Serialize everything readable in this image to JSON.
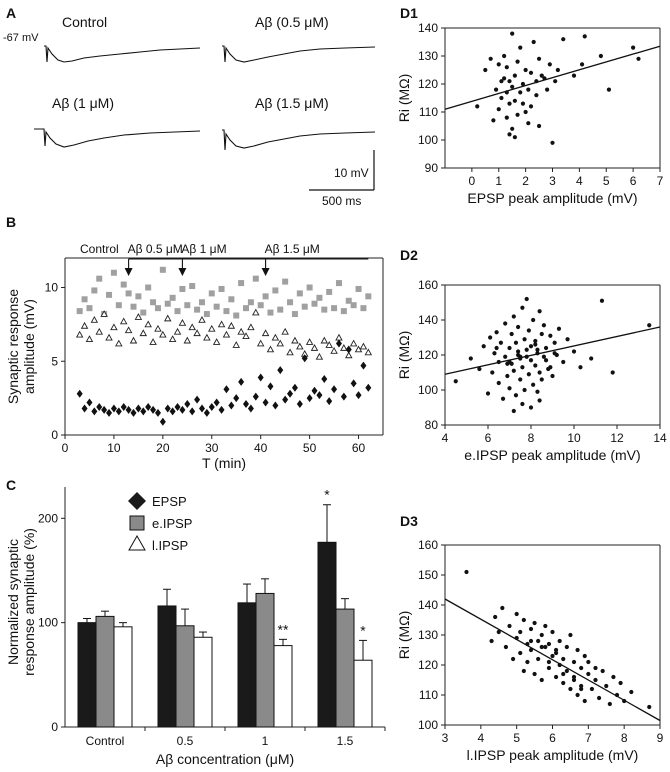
{
  "colors": {
    "axis": "#222222",
    "epsp": "#1a1a1a",
    "eipsp": "#8a8a8a",
    "lipsp": "#ffffff",
    "scatter_b_gray": "#a0a0a0",
    "scatter_b_black": "#111111"
  },
  "panel_a": {
    "label": "A",
    "resting_potential": "-67 mV",
    "traces": [
      {
        "title": "Control",
        "title_html": "Control"
      },
      {
        "title": "Aβ (0.5 μM)"
      },
      {
        "title": "Aβ (1 μM)"
      },
      {
        "title": "Aβ (1.5 μM)"
      }
    ],
    "scale_v": "10 mV",
    "scale_t": "500 ms"
  },
  "panel_b": {
    "label": "B",
    "markers": [
      {
        "label": "Control",
        "time": 0
      },
      {
        "label": "Aβ 0.5 μM",
        "time": 13
      },
      {
        "label": "Aβ 1 μM",
        "time": 24
      },
      {
        "label": "Aβ 1.5 μM",
        "time": 41
      }
    ]
  },
  "panel_c": {
    "label": "C",
    "legend": [
      "EPSP",
      "e.IPSP",
      "l.IPSP"
    ],
    "significance": {
      "epsp_1_5": "*",
      "lipsp_1": "**",
      "lipsp_1_5": "*"
    }
  },
  "panel_d": {
    "labels": [
      "D1",
      "D2",
      "D3"
    ]
  },
  "chart_data": [
    {
      "id": "B",
      "type": "scatter",
      "title": "",
      "xlabel": "T (min)",
      "ylabel_lines": [
        "Synaptic response",
        "amplitude (mV)"
      ],
      "xlim": [
        0,
        65
      ],
      "ylim": [
        0,
        12
      ],
      "xticks": [
        0,
        10,
        20,
        30,
        40,
        50,
        60
      ],
      "yticks": [
        0,
        5,
        10
      ],
      "series": [
        {
          "name": "e.IPSP",
          "marker": "square",
          "x": [
            3,
            4,
            5,
            6,
            7,
            8,
            9,
            10,
            11,
            12,
            13,
            14,
            15,
            16,
            17,
            18,
            19,
            20,
            21,
            22,
            23,
            24,
            25,
            26,
            27,
            28,
            29,
            30,
            31,
            32,
            33,
            34,
            35,
            36,
            37,
            38,
            39,
            40,
            41,
            42,
            43,
            44,
            45,
            46,
            47,
            48,
            49,
            50,
            51,
            52,
            53,
            54,
            55,
            56,
            57,
            58,
            59,
            60,
            61,
            62
          ],
          "y": [
            8.4,
            9.2,
            8.6,
            9.8,
            10.6,
            8.2,
            9.5,
            11.0,
            8.8,
            10.2,
            9.6,
            8.7,
            9.4,
            8.3,
            10.0,
            9.0,
            8.6,
            11.2,
            8.9,
            9.3,
            8.4,
            9.9,
            8.8,
            10.1,
            8.5,
            9.0,
            8.2,
            9.6,
            8.7,
            9.9,
            8.4,
            9.2,
            8.1,
            10.3,
            8.6,
            9.0,
            10.6,
            8.8,
            9.4,
            8.3,
            9.8,
            8.5,
            10.4,
            9.0,
            8.2,
            9.6,
            8.7,
            10.0,
            8.9,
            9.3,
            8.5,
            9.7,
            8.6,
            10.3,
            8.4,
            9.1,
            8.8,
            9.9,
            8.6,
            9.4
          ]
        },
        {
          "name": "l.IPSP",
          "marker": "triangle",
          "x": [
            3,
            4,
            5,
            6,
            7,
            8,
            9,
            10,
            11,
            12,
            13,
            14,
            15,
            16,
            17,
            18,
            19,
            20,
            21,
            22,
            23,
            24,
            25,
            26,
            27,
            28,
            29,
            30,
            31,
            32,
            33,
            34,
            35,
            36,
            37,
            38,
            39,
            40,
            41,
            42,
            43,
            44,
            45,
            46,
            47,
            48,
            49,
            50,
            51,
            52,
            53,
            54,
            55,
            56,
            57,
            58,
            59,
            60,
            61,
            62
          ],
          "y": [
            6.8,
            7.4,
            6.5,
            7.8,
            7.0,
            8.2,
            6.6,
            7.3,
            6.2,
            7.7,
            7.1,
            6.4,
            8.0,
            6.9,
            7.5,
            6.3,
            7.2,
            6.8,
            7.9,
            6.5,
            7.0,
            7.6,
            6.4,
            7.3,
            6.9,
            7.8,
            6.6,
            7.2,
            6.3,
            7.5,
            6.8,
            7.4,
            6.1,
            7.0,
            6.7,
            7.3,
            8.3,
            6.2,
            6.9,
            5.8,
            6.6,
            6.2,
            7.0,
            5.6,
            6.4,
            6.0,
            5.5,
            6.3,
            5.9,
            5.3,
            6.4,
            6.1,
            5.7,
            6.6,
            5.9,
            5.4,
            6.2,
            5.8,
            6.0,
            5.6
          ]
        },
        {
          "name": "EPSP",
          "marker": "diamond",
          "x": [
            3,
            4,
            5,
            6,
            7,
            8,
            9,
            10,
            11,
            12,
            13,
            14,
            15,
            16,
            17,
            18,
            19,
            20,
            21,
            22,
            23,
            24,
            25,
            26,
            27,
            28,
            29,
            30,
            31,
            32,
            33,
            34,
            35,
            36,
            37,
            38,
            39,
            40,
            41,
            42,
            43,
            44,
            45,
            46,
            47,
            48,
            49,
            50,
            51,
            52,
            53,
            54,
            55,
            56,
            57,
            58,
            59,
            60,
            61,
            62
          ],
          "y": [
            2.8,
            1.8,
            2.2,
            1.6,
            1.9,
            1.7,
            1.5,
            1.8,
            1.6,
            1.9,
            1.7,
            1.5,
            1.8,
            1.6,
            1.9,
            1.7,
            1.5,
            0.9,
            1.8,
            1.6,
            1.9,
            1.7,
            2.1,
            1.6,
            2.4,
            1.8,
            1.5,
            1.9,
            2.2,
            1.7,
            3.1,
            2.0,
            2.5,
            3.6,
            2.1,
            1.8,
            2.6,
            3.9,
            2.2,
            3.3,
            2.0,
            4.4,
            2.4,
            2.8,
            3.2,
            2.1,
            5.2,
            2.5,
            3.0,
            2.7,
            3.8,
            2.3,
            3.1,
            6.2,
            2.6,
            5.8,
            3.5,
            2.7,
            4.7,
            3.2
          ]
        }
      ]
    },
    {
      "id": "C",
      "type": "bar",
      "title": "",
      "categories": [
        "Control",
        "0.5",
        "1",
        "1.5"
      ],
      "xlabel": "Aβ concentration (μM)",
      "ylabel_lines": [
        "Normalized synaptic",
        "response amplitude (%)"
      ],
      "ylim": [
        0,
        230
      ],
      "yticks": [
        0,
        100,
        200
      ],
      "series": [
        {
          "name": "EPSP",
          "values": [
            100,
            116,
            119,
            177
          ],
          "errors": [
            4,
            16,
            18,
            36
          ]
        },
        {
          "name": "e.IPSP",
          "values": [
            106,
            97,
            128,
            113
          ],
          "errors": [
            5,
            16,
            14,
            10
          ]
        },
        {
          "name": "l.IPSP",
          "values": [
            96,
            86,
            78,
            64
          ],
          "errors": [
            4,
            5,
            6,
            19
          ]
        }
      ]
    },
    {
      "id": "D1",
      "type": "scatter",
      "title": "",
      "xlabel": "EPSP peak amplitude (mV)",
      "ylabel": "Ri (MΩ)",
      "xlim": [
        -1,
        7
      ],
      "ylim": [
        90,
        140
      ],
      "xticks": [
        0,
        1,
        2,
        3,
        4,
        5,
        6,
        7
      ],
      "yticks": [
        90,
        100,
        110,
        120,
        130,
        140
      ],
      "fit": [
        [
          -1,
          111.0
        ],
        [
          7,
          133.5
        ]
      ],
      "x": [
        0.2,
        0.5,
        0.7,
        0.8,
        0.9,
        1.0,
        1.0,
        1.1,
        1.1,
        1.2,
        1.2,
        1.3,
        1.3,
        1.3,
        1.4,
        1.4,
        1.4,
        1.5,
        1.5,
        1.5,
        1.6,
        1.6,
        1.6,
        1.7,
        1.7,
        1.8,
        1.8,
        1.9,
        1.9,
        2.0,
        2.0,
        2.1,
        2.1,
        2.2,
        2.2,
        2.3,
        2.4,
        2.4,
        2.5,
        2.5,
        2.6,
        2.7,
        2.8,
        2.9,
        3.0,
        3.1,
        3.2,
        3.4,
        3.8,
        4.1,
        4.2,
        4.8,
        5.1,
        6.0,
        6.2
      ],
      "y": [
        112,
        125,
        129,
        107,
        118,
        127,
        111,
        121,
        115,
        122,
        130,
        108,
        117,
        126,
        102,
        113,
        121,
        104,
        119,
        138,
        101,
        114,
        123,
        109,
        128,
        117,
        133,
        113,
        120,
        110,
        125,
        106,
        118,
        112,
        124,
        135,
        121,
        116,
        129,
        105,
        123,
        122,
        118,
        127,
        99,
        121,
        125,
        136,
        123,
        127,
        137,
        130,
        118,
        133,
        129
      ]
    },
    {
      "id": "D2",
      "type": "scatter",
      "title": "",
      "xlabel": "e.IPSP peak amplitude  (mV)",
      "ylabel": "Ri (MΩ)",
      "xlim": [
        4,
        14
      ],
      "ylim": [
        80,
        160
      ],
      "xticks": [
        4,
        6,
        8,
        10,
        12,
        14
      ],
      "yticks": [
        80,
        100,
        120,
        140,
        160
      ],
      "fit": [
        [
          4,
          109.0
        ],
        [
          14,
          136.0
        ]
      ],
      "x": [
        4.5,
        5.2,
        5.6,
        5.8,
        6.0,
        6.1,
        6.2,
        6.3,
        6.4,
        6.5,
        6.5,
        6.6,
        6.7,
        6.8,
        6.8,
        6.9,
        7.0,
        7.0,
        7.1,
        7.1,
        7.2,
        7.2,
        7.3,
        7.3,
        7.4,
        7.4,
        7.5,
        7.5,
        7.6,
        7.6,
        7.7,
        7.7,
        7.8,
        7.8,
        7.9,
        7.9,
        8.0,
        8.0,
        8.1,
        8.1,
        8.2,
        8.2,
        8.3,
        8.3,
        8.4,
        8.4,
        8.5,
        8.5,
        8.6,
        8.6,
        8.7,
        8.8,
        8.9,
        9.0,
        9.1,
        9.2,
        9.3,
        9.5,
        9.7,
        10.0,
        10.3,
        10.8,
        11.3,
        11.8,
        13.5,
        7.2,
        7.6,
        8.0,
        8.4,
        6.9,
        7.4,
        7.8,
        8.2,
        8.7,
        9.1,
        6.4,
        7.0,
        7.5,
        8.3,
        8.9
      ],
      "y": [
        105,
        118,
        112,
        125,
        98,
        130,
        110,
        121,
        133,
        104,
        116,
        127,
        95,
        119,
        138,
        108,
        124,
        101,
        132,
        115,
        142,
        111,
        127,
        97,
        120,
        136,
        106,
        118,
        147,
        113,
        129,
        100,
        123,
        152,
        109,
        134,
        117,
        125,
        103,
        140,
        114,
        128,
        99,
        121,
        145,
        110,
        132,
        106,
        119,
        137,
        124,
        112,
        131,
        108,
        127,
        120,
        135,
        116,
        129,
        122,
        113,
        118,
        151,
        110,
        137,
        88,
        92,
        90,
        94,
        115,
        122,
        119,
        126,
        117,
        121,
        124,
        116,
        119,
        123,
        113
      ]
    },
    {
      "id": "D3",
      "type": "scatter",
      "title": "",
      "xlabel": "l.IPSP peak amplitude (mV)",
      "ylabel": "Ri (MΩ)",
      "xlim": [
        3,
        9
      ],
      "ylim": [
        100,
        160
      ],
      "xticks": [
        3,
        4,
        5,
        6,
        7,
        8,
        9
      ],
      "yticks": [
        100,
        110,
        120,
        130,
        140,
        150,
        160
      ],
      "fit": [
        [
          3,
          142.0
        ],
        [
          9,
          101.5
        ]
      ],
      "x": [
        3.6,
        4.3,
        4.4,
        4.5,
        4.6,
        4.7,
        4.8,
        4.9,
        5.0,
        5.0,
        5.1,
        5.1,
        5.2,
        5.2,
        5.3,
        5.3,
        5.4,
        5.4,
        5.5,
        5.5,
        5.6,
        5.6,
        5.7,
        5.7,
        5.8,
        5.8,
        5.9,
        5.9,
        6.0,
        6.0,
        6.1,
        6.1,
        6.2,
        6.2,
        6.3,
        6.3,
        6.4,
        6.4,
        6.5,
        6.5,
        6.6,
        6.6,
        6.7,
        6.7,
        6.8,
        6.8,
        6.9,
        6.9,
        7.0,
        7.0,
        7.1,
        7.2,
        7.3,
        7.4,
        7.5,
        7.6,
        7.7,
        7.8,
        7.9,
        8.0,
        8.2,
        8.7,
        5.4,
        5.9,
        6.3,
        6.8,
        7.2,
        5.7,
        6.1,
        6.6
      ],
      "y": [
        151,
        128,
        136,
        131,
        139,
        126,
        133,
        122,
        129,
        137,
        124,
        131,
        118,
        135,
        127,
        121,
        132,
        125,
        117,
        134,
        128,
        122,
        130,
        115,
        126,
        133,
        119,
        127,
        123,
        131,
        116,
        125,
        120,
        128,
        114,
        122,
        126,
        118,
        130,
        112,
        121,
        116,
        125,
        110,
        119,
        113,
        123,
        108,
        117,
        121,
        112,
        115,
        109,
        118,
        113,
        107,
        116,
        110,
        114,
        108,
        111,
        106,
        128,
        121,
        117,
        112,
        119,
        126,
        124,
        115
      ]
    }
  ]
}
